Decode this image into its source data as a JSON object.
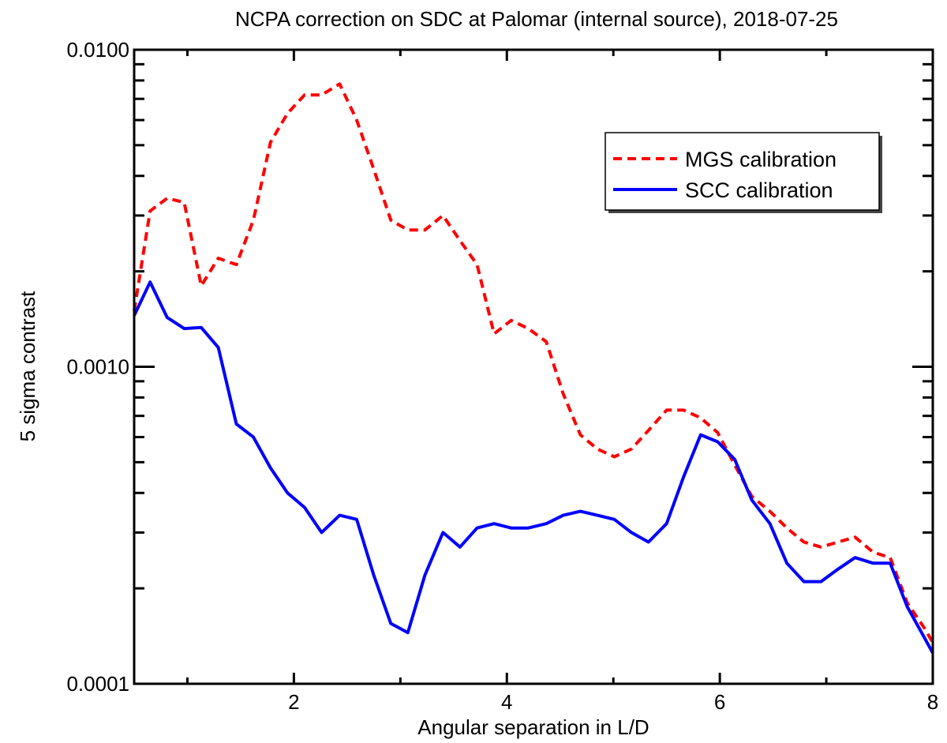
{
  "chart_data": {
    "type": "line",
    "title": "NCPA correction on SDC at Palomar (internal source), 2018-07-25",
    "xlabel": "Angular separation in L/D",
    "ylabel": "5 sigma contrast",
    "xlim": [
      0.5,
      8
    ],
    "ylim": [
      0.0001,
      0.01
    ],
    "yscale": "log",
    "grid": false,
    "legend_position": "top-right",
    "xticks": [
      {
        "value": 2,
        "label": "2"
      },
      {
        "value": 4,
        "label": "4"
      },
      {
        "value": 6,
        "label": "6"
      },
      {
        "value": 8,
        "label": "8"
      }
    ],
    "yticks": [
      {
        "value": 0.0001,
        "label": "0.0001"
      },
      {
        "value": 0.001,
        "label": "0.0010"
      },
      {
        "value": 0.01,
        "label": "0.0100"
      }
    ],
    "series": [
      {
        "name": "MGS calibration",
        "color": "#ff0000",
        "style": "dashed",
        "x": [
          0.5,
          0.65,
          0.81,
          0.97,
          1.13,
          1.29,
          1.46,
          1.62,
          1.78,
          1.94,
          2.1,
          2.26,
          2.43,
          2.59,
          2.75,
          2.91,
          3.07,
          3.23,
          3.4,
          3.56,
          3.72,
          3.88,
          4.04,
          4.2,
          4.37,
          4.53,
          4.69,
          4.85,
          5.01,
          5.17,
          5.33,
          5.5,
          5.66,
          5.82,
          5.98,
          6.14,
          6.3,
          6.47,
          6.63,
          6.79,
          6.95,
          7.11,
          7.27,
          7.44,
          7.6,
          7.76,
          7.92,
          8.0
        ],
        "y": [
          0.0015,
          0.0031,
          0.0034,
          0.0033,
          0.0018,
          0.0022,
          0.0021,
          0.0029,
          0.0051,
          0.0063,
          0.0072,
          0.0072,
          0.0078,
          0.006,
          0.0042,
          0.0029,
          0.0027,
          0.0027,
          0.003,
          0.0025,
          0.0021,
          0.00127,
          0.0014,
          0.00132,
          0.0012,
          0.00082,
          0.00061,
          0.00055,
          0.00052,
          0.00055,
          0.00063,
          0.00073,
          0.00073,
          0.00069,
          0.00062,
          0.00049,
          0.00039,
          0.00035,
          0.00031,
          0.00028,
          0.00027,
          0.00028,
          0.00029,
          0.00026,
          0.00025,
          0.00018,
          0.00015,
          0.000135
        ]
      },
      {
        "name": "SCC calibration",
        "color": "#0000ff",
        "style": "solid",
        "x": [
          0.5,
          0.65,
          0.81,
          0.97,
          1.13,
          1.29,
          1.46,
          1.62,
          1.78,
          1.94,
          2.1,
          2.26,
          2.43,
          2.59,
          2.75,
          2.91,
          3.07,
          3.23,
          3.4,
          3.56,
          3.72,
          3.88,
          4.04,
          4.2,
          4.37,
          4.53,
          4.69,
          4.85,
          5.01,
          5.17,
          5.33,
          5.5,
          5.66,
          5.82,
          5.98,
          6.14,
          6.3,
          6.47,
          6.63,
          6.79,
          6.95,
          7.11,
          7.27,
          7.44,
          7.6,
          7.76,
          7.92,
          8.0
        ],
        "y": [
          0.00145,
          0.00185,
          0.00143,
          0.00132,
          0.00133,
          0.00115,
          0.00066,
          0.0006,
          0.00048,
          0.0004,
          0.00036,
          0.0003,
          0.00034,
          0.00033,
          0.00022,
          0.000155,
          0.000145,
          0.00022,
          0.0003,
          0.00027,
          0.00031,
          0.00032,
          0.00031,
          0.00031,
          0.00032,
          0.00034,
          0.00035,
          0.00034,
          0.00033,
          0.0003,
          0.00028,
          0.00032,
          0.00045,
          0.00061,
          0.00058,
          0.00051,
          0.00038,
          0.00032,
          0.00024,
          0.00021,
          0.00021,
          0.00023,
          0.00025,
          0.00024,
          0.00024,
          0.000175,
          0.00014,
          0.000125
        ]
      }
    ]
  }
}
